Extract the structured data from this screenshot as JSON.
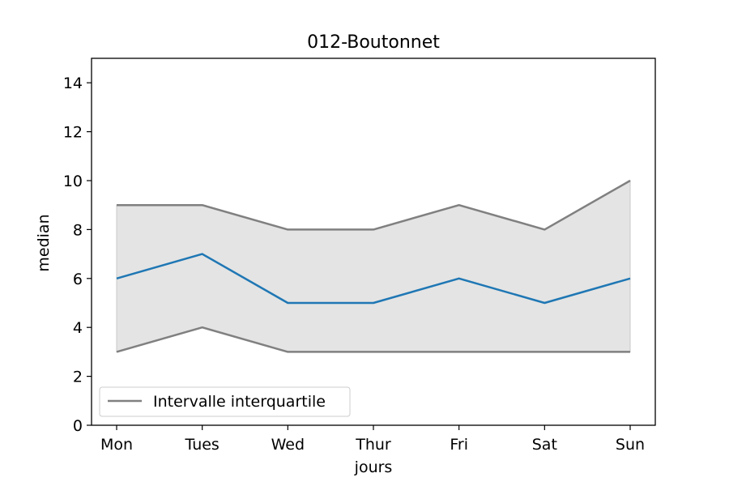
{
  "chart_data": {
    "type": "line",
    "title": "012-Boutonnet",
    "xlabel": "jours",
    "ylabel": "median",
    "categories": [
      "Mon",
      "Tues",
      "Wed",
      "Thur",
      "Fri",
      "Sat",
      "Sun"
    ],
    "ylim": [
      0,
      15
    ],
    "yticks": [
      0,
      2,
      4,
      6,
      8,
      10,
      12,
      14
    ],
    "series": [
      {
        "values": [
          6,
          7,
          5,
          5,
          6,
          5,
          6
        ],
        "color": "#1f77b4"
      }
    ],
    "interval": {
      "name": "Intervalle interquartile",
      "upper": [
        9,
        9,
        8,
        8,
        9,
        8,
        10
      ],
      "lower": [
        3,
        4,
        3,
        3,
        3,
        3,
        3
      ],
      "line_color": "#808080",
      "fill_color": "#e4e4e4"
    },
    "grid": false,
    "legend_position": "lower-left"
  }
}
